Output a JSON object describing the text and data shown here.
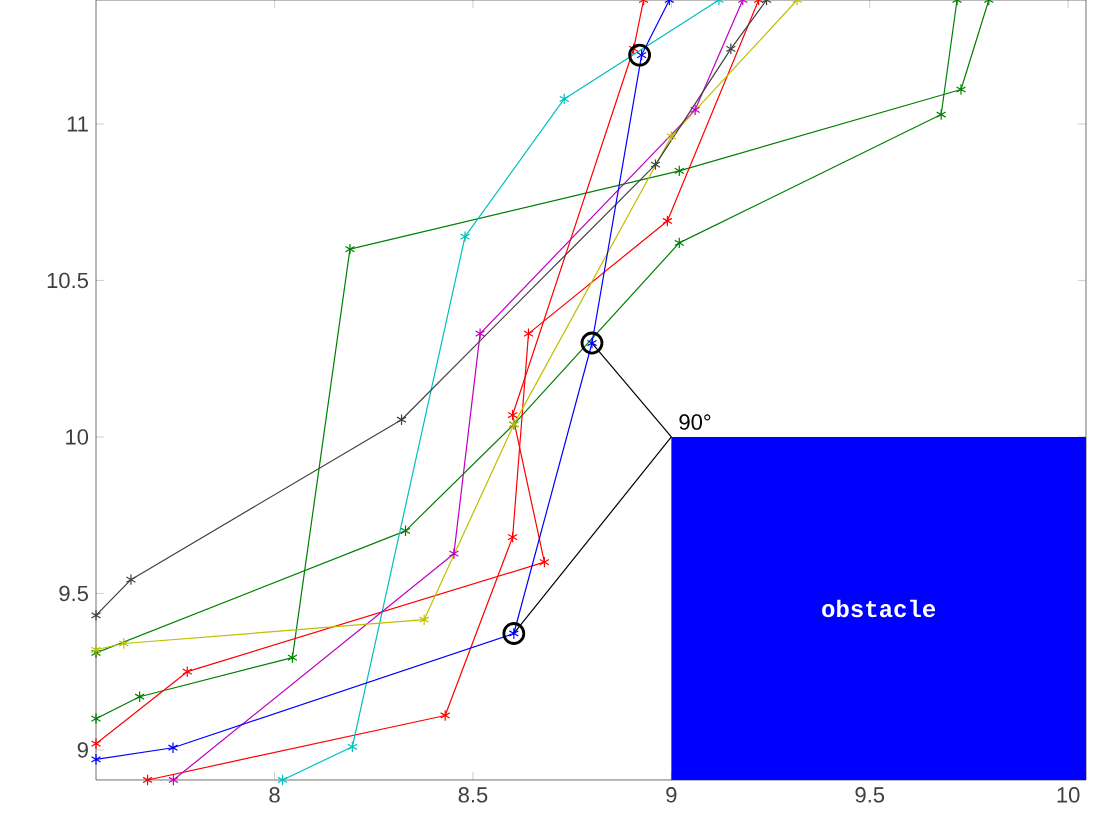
{
  "chart_data": {
    "type": "line",
    "xlim": [
      7.55,
      10.045
    ],
    "ylim": [
      8.904,
      11.396
    ],
    "xticks": [
      8,
      8.5,
      9,
      9.5,
      10
    ],
    "yticks": [
      9,
      9.5,
      10,
      10.5,
      11
    ],
    "grid": false,
    "series": [
      {
        "type": "area",
        "color": "#0000ff",
        "marker": "none",
        "x": [
          9,
          10.045
        ],
        "values": [
          10,
          10
        ]
      },
      {
        "color": "#008000",
        "marker": "cross",
        "x": [
          7.55,
          7.66,
          8.045,
          8.19,
          9.02,
          9.73,
          9.8
        ],
        "values": [
          9.1,
          9.17,
          9.295,
          10.6,
          10.85,
          11.11,
          11.396
        ]
      },
      {
        "color": "#008000",
        "marker": "cross",
        "x": [
          7.55,
          8.33,
          8.603,
          9.02,
          9.68,
          9.72
        ],
        "values": [
          9.31,
          9.7,
          10.04,
          10.62,
          11.03,
          11.396
        ]
      },
      {
        "color": "#ff0000",
        "marker": "cross",
        "x": [
          7.68,
          8.43,
          8.6,
          8.64,
          8.99,
          9.22
        ],
        "values": [
          8.904,
          9.11,
          9.68,
          10.33,
          10.69,
          11.396
        ]
      },
      {
        "color": "#ff0000",
        "marker": "cross",
        "x": [
          7.55,
          7.78,
          8.68,
          8.6,
          8.905,
          8.93
        ],
        "values": [
          9.02,
          9.25,
          9.6,
          10.07,
          11.24,
          11.396
        ]
      },
      {
        "color": "#00bfbf",
        "marker": "cross",
        "x": [
          8.02,
          8.196,
          8.48,
          8.73,
          9.12
        ],
        "values": [
          8.904,
          9.01,
          10.64,
          11.08,
          11.396
        ]
      },
      {
        "color": "#bf00bf",
        "marker": "cross",
        "x": [
          7.745,
          8.452,
          8.518,
          9.06,
          9.18
        ],
        "values": [
          8.904,
          9.627,
          10.33,
          11.045,
          11.396
        ]
      },
      {
        "color": "#bfbf00",
        "marker": "cross",
        "x": [
          7.55,
          7.62,
          8.377,
          8.603,
          9.0,
          9.317
        ],
        "values": [
          9.32,
          9.34,
          9.416,
          10.04,
          10.96,
          11.396
        ]
      },
      {
        "color": "#404040",
        "marker": "cross",
        "x": [
          7.55,
          7.638,
          8.32,
          8.96,
          9.15,
          9.24
        ],
        "values": [
          9.43,
          9.544,
          10.055,
          10.87,
          11.24,
          11.396
        ]
      },
      {
        "color": "#0000ff",
        "marker": "cross",
        "x": [
          7.55,
          7.744,
          8.603,
          8.8,
          8.925,
          8.995
        ],
        "values": [
          8.97,
          9.007,
          9.372,
          10.3,
          11.22,
          11.396
        ]
      },
      {
        "color": "#000000",
        "marker": "none",
        "x": [
          8.8,
          9.0,
          8.603
        ],
        "values": [
          10.3,
          10.0,
          9.372
        ]
      },
      {
        "type": "scatter",
        "color": "#000000",
        "marker": "circle",
        "x": [
          8.603,
          8.8,
          8.92
        ],
        "values": [
          9.372,
          10.3,
          11.22
        ]
      }
    ],
    "annotations": [
      "90°",
      "obstacle"
    ]
  }
}
